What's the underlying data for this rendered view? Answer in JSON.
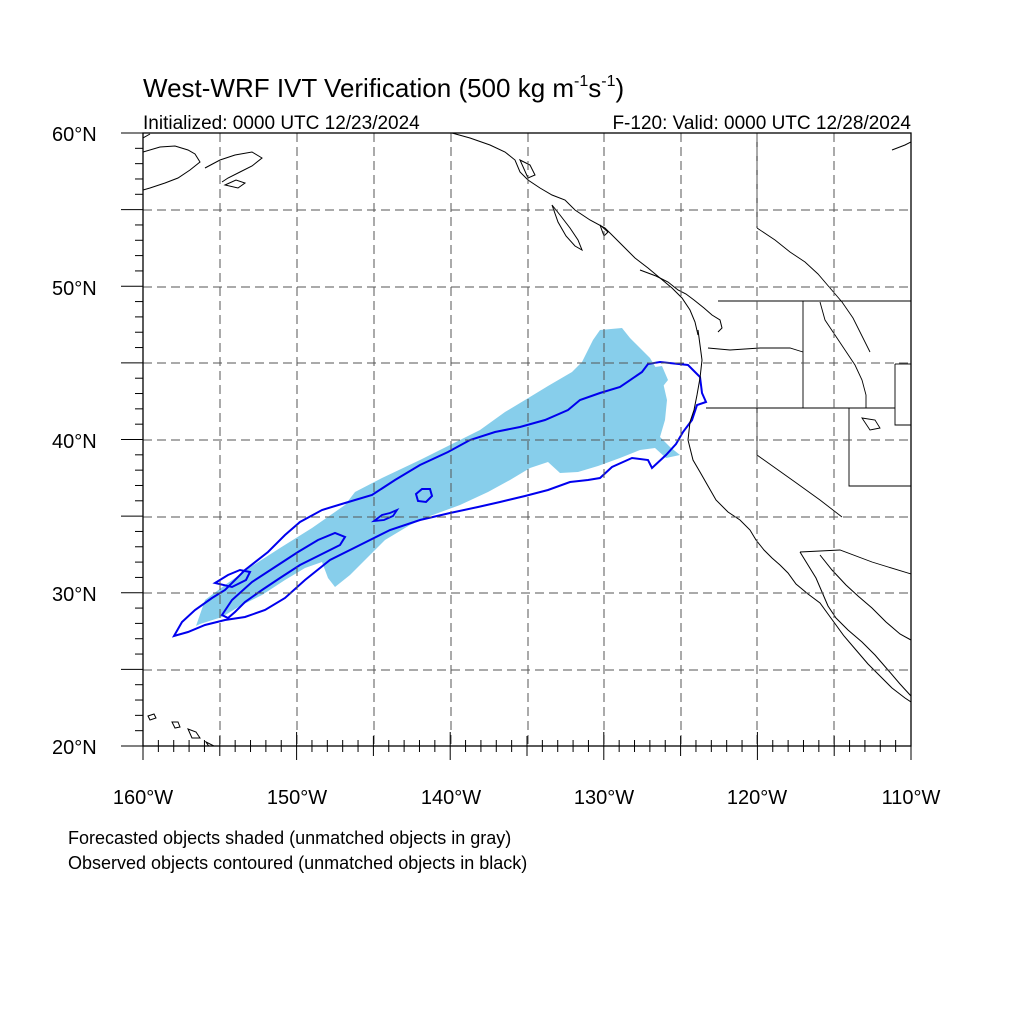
{
  "title": {
    "main": "West-WRF IVT Verification (500 kg m",
    "sup1": "-1",
    "mid": "s",
    "sup2": "-1",
    "end": ")"
  },
  "subtitle_left": "Initialized: 0000 UTC 12/23/2024",
  "subtitle_right": "F-120: Valid: 0000 UTC 12/28/2024",
  "lat_labels": [
    "60°N",
    "50°N",
    "40°N",
    "30°N",
    "20°N"
  ],
  "lon_labels": [
    "160°W",
    "150°W",
    "140°W",
    "130°W",
    "120°W",
    "110°W"
  ],
  "map_extent": {
    "lon_min": -160,
    "lon_max": -110,
    "lat_min": 20,
    "lat_max": 60
  },
  "gridlines": {
    "style": "dashed",
    "lon_step_deg": 5,
    "lat_step_deg": 5
  },
  "colors": {
    "forecast_fill": "#87ceeb",
    "observed_contour": "#0000ee",
    "coastline": "#000000",
    "gridline": "#555555"
  },
  "notes": [
    "Forecasted objects shaded (unmatched objects in gray)",
    "Observed objects contoured (unmatched objects in black)"
  ]
}
